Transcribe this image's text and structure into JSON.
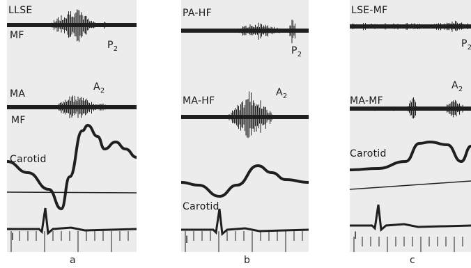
{
  "figure": {
    "background_color": "#ececec",
    "trace_color": "#1f1f1f",
    "panels": [
      {
        "letter": "a",
        "trace_labels": {
          "top": "LLSE",
          "top_sub": "MF",
          "sound_a": "P",
          "sound_a_sub": "2",
          "mid": "MA",
          "mid_sub": "MF",
          "sound_b": "A",
          "sound_b_sub": "2",
          "carotid": "Carotid",
          "ecg": "I"
        }
      },
      {
        "letter": "b",
        "trace_labels": {
          "top": "PA-HF",
          "sound_a": "P",
          "sound_a_sub": "2",
          "mid": "MA-HF",
          "sound_b": "A",
          "sound_b_sub": "2",
          "carotid": "Carotid",
          "ecg": "I"
        }
      },
      {
        "letter": "c",
        "trace_labels": {
          "top": "LSE-MF",
          "sound_a": "P",
          "sound_a_sub": "2",
          "mid": "MA-MF",
          "sound_b": "A",
          "sound_b_sub": "2",
          "carotid": "Carotid",
          "ecg": "I"
        }
      }
    ]
  }
}
